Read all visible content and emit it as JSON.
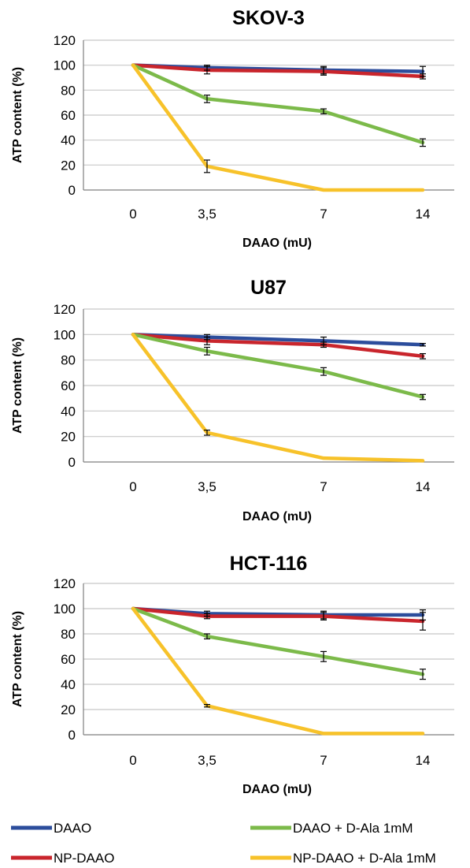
{
  "chart_data": [
    {
      "type": "line",
      "title": "SKOV-3",
      "xlabel": "DAAO (mU)",
      "ylabel": "ATP content (%)",
      "categories": [
        "0",
        "3,5",
        "7",
        "14"
      ],
      "ylim": [
        0,
        120
      ],
      "yticks": [
        0,
        20,
        40,
        60,
        80,
        100,
        120
      ],
      "grid": true,
      "series": [
        {
          "name": "DAAO",
          "color": "#2c4d9c",
          "values": [
            100,
            98,
            96,
            95
          ],
          "errors": [
            0,
            2,
            3,
            4
          ]
        },
        {
          "name": "NP-DAAO",
          "color": "#c9252c",
          "values": [
            100,
            96,
            95,
            91
          ],
          "errors": [
            0,
            3,
            3,
            2
          ]
        },
        {
          "name": "DAAO + D-Ala 1mM",
          "color": "#7cba4a",
          "values": [
            100,
            73,
            63,
            38
          ],
          "errors": [
            0,
            3,
            2,
            3
          ]
        },
        {
          "name": "NP-DAAO + D-Ala 1mM",
          "color": "#f7c22a",
          "values": [
            100,
            19,
            0,
            0
          ],
          "errors": [
            0,
            5,
            0,
            0
          ]
        }
      ]
    },
    {
      "type": "line",
      "title": "U87",
      "xlabel": "DAAO (mU)",
      "ylabel": "ATP content (%)",
      "categories": [
        "0",
        "3,5",
        "7",
        "14"
      ],
      "ylim": [
        0,
        120
      ],
      "yticks": [
        0,
        20,
        40,
        60,
        80,
        100,
        120
      ],
      "grid": true,
      "series": [
        {
          "name": "DAAO",
          "color": "#2c4d9c",
          "values": [
            100,
            98,
            95,
            92
          ],
          "errors": [
            0,
            2,
            3,
            1
          ]
        },
        {
          "name": "NP-DAAO",
          "color": "#c9252c",
          "values": [
            100,
            95,
            92,
            83
          ],
          "errors": [
            0,
            3,
            2,
            2
          ]
        },
        {
          "name": "DAAO + D-Ala 1mM",
          "color": "#7cba4a",
          "values": [
            100,
            87,
            71,
            51
          ],
          "errors": [
            0,
            3,
            3,
            2
          ]
        },
        {
          "name": "NP-DAAO + D-Ala 1mM",
          "color": "#f7c22a",
          "values": [
            100,
            23,
            3,
            1
          ],
          "errors": [
            0,
            2,
            0,
            0
          ]
        }
      ]
    },
    {
      "type": "line",
      "title": "HCT-116",
      "xlabel": "DAAO (mU)",
      "ylabel": "ATP content (%)",
      "categories": [
        "0",
        "3,5",
        "7",
        "14"
      ],
      "ylim": [
        0,
        120
      ],
      "yticks": [
        0,
        20,
        40,
        60,
        80,
        100,
        120
      ],
      "grid": true,
      "series": [
        {
          "name": "DAAO",
          "color": "#2c4d9c",
          "values": [
            100,
            96,
            95,
            95
          ],
          "errors": [
            0,
            2,
            3,
            4
          ]
        },
        {
          "name": "NP-DAAO",
          "color": "#c9252c",
          "values": [
            100,
            94,
            94,
            90
          ],
          "errors": [
            0,
            2,
            3,
            7
          ]
        },
        {
          "name": "DAAO + D-Ala 1mM",
          "color": "#7cba4a",
          "values": [
            100,
            78,
            62,
            48
          ],
          "errors": [
            0,
            2,
            4,
            4
          ]
        },
        {
          "name": "NP-DAAO + D-Ala 1mM",
          "color": "#f7c22a",
          "values": [
            100,
            23,
            1,
            1
          ],
          "errors": [
            0,
            1,
            0,
            0
          ]
        }
      ]
    }
  ],
  "legend": {
    "position": "bottom",
    "items": [
      {
        "label": "DAAO",
        "color": "#2c4d9c"
      },
      {
        "label": "DAAO + D-Ala 1mM",
        "color": "#7cba4a"
      },
      {
        "label": "NP-DAAO",
        "color": "#c9252c"
      },
      {
        "label": "NP-DAAO + D-Ala 1mM",
        "color": "#f7c22a"
      }
    ]
  }
}
